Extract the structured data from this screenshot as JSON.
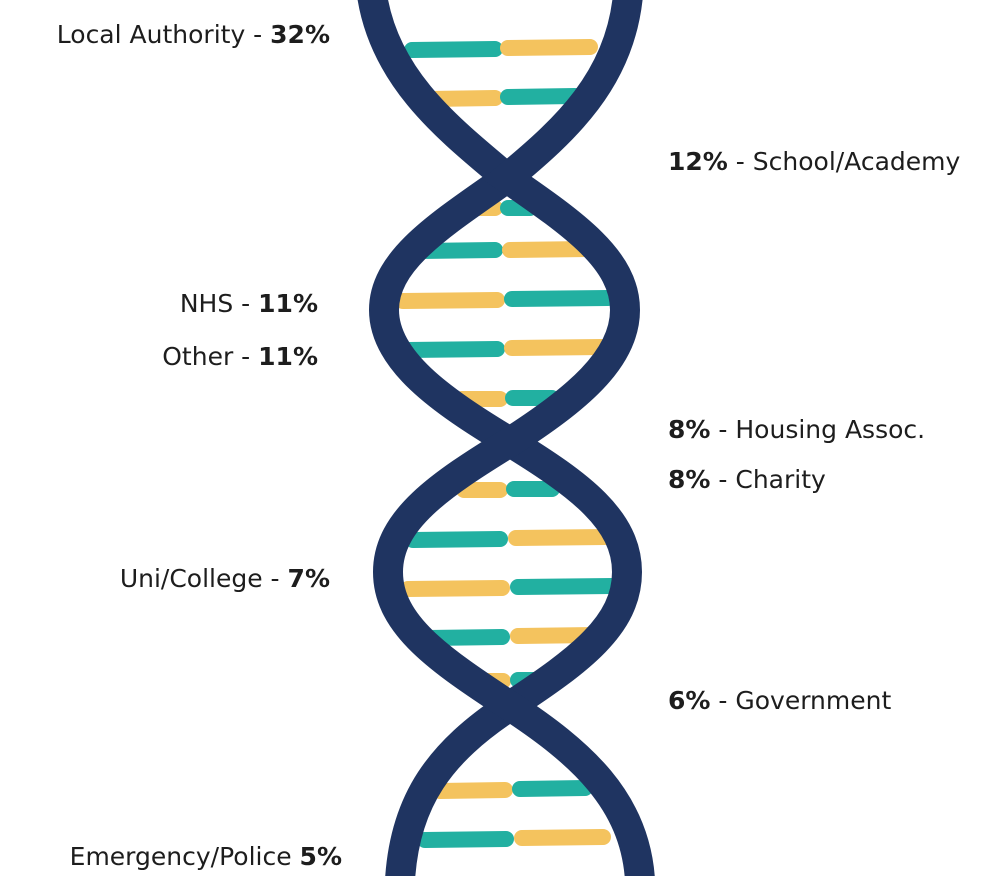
{
  "left": [
    {
      "label": "Local Authority -",
      "value": "32%"
    },
    {
      "label": "NHS -",
      "value": "11%"
    },
    {
      "label": "Other -",
      "value": "11%"
    },
    {
      "label": "Uni/College -",
      "value": "7%"
    },
    {
      "label": "Emergency/Police",
      "value": "5%"
    }
  ],
  "right": [
    {
      "value": "12%",
      "label": "- School/Academy"
    },
    {
      "value": "8%",
      "label": "- Housing Assoc."
    },
    {
      "value": "8%",
      "label": "- Charity"
    },
    {
      "value": "6%",
      "label": "- Government"
    }
  ]
}
